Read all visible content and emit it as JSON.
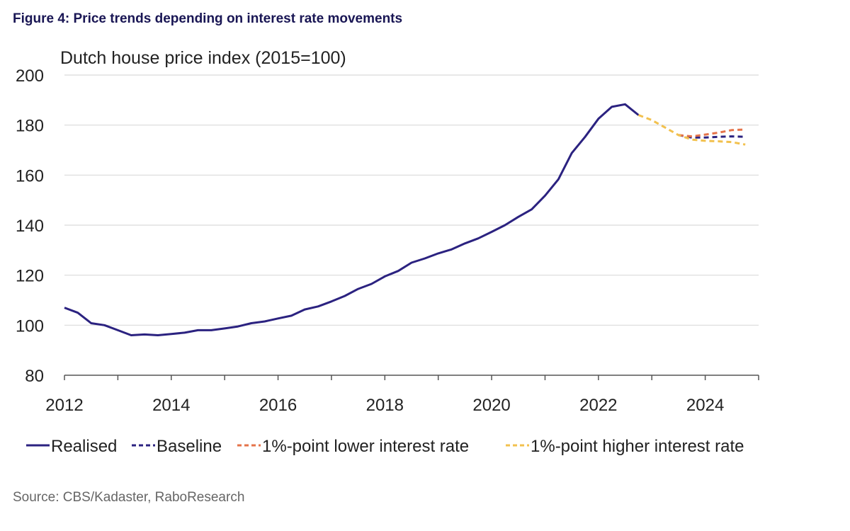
{
  "figure_title": "Figure 4: Price trends depending on interest rate movements",
  "source": "Source: CBS/Kadaster, RaboResearch",
  "colors": {
    "realised": "#2b2280",
    "baseline": "#2b2280",
    "lower": "#e5734a",
    "higher": "#f2c14e",
    "grid": "#d9d9d9",
    "axis": "#555555"
  },
  "chart_data": {
    "type": "line",
    "title": "Dutch house price index (2015=100)",
    "xlabel": "",
    "ylabel": "Dutch house price index (2015=100)",
    "xlim": [
      2012,
      2025
    ],
    "ylim": [
      80,
      200
    ],
    "grid": true,
    "legend_position": "bottom",
    "x_ticks": [
      2012,
      2014,
      2016,
      2018,
      2020,
      2022,
      2024
    ],
    "y_ticks": [
      80,
      100,
      120,
      140,
      160,
      180,
      200
    ],
    "series": [
      {
        "name": "Realised",
        "style": "solid",
        "color_key": "realised",
        "points": [
          [
            2012.0,
            107.0
          ],
          [
            2012.25,
            105.0
          ],
          [
            2012.5,
            100.8
          ],
          [
            2012.75,
            100.0
          ],
          [
            2013.0,
            98.0
          ],
          [
            2013.25,
            96.0
          ],
          [
            2013.5,
            96.3
          ],
          [
            2013.75,
            96.0
          ],
          [
            2014.0,
            96.5
          ],
          [
            2014.25,
            97.0
          ],
          [
            2014.5,
            98.0
          ],
          [
            2014.75,
            98.0
          ],
          [
            2015.0,
            98.7
          ],
          [
            2015.25,
            99.5
          ],
          [
            2015.5,
            100.8
          ],
          [
            2015.75,
            101.5
          ],
          [
            2016.0,
            102.7
          ],
          [
            2016.25,
            103.8
          ],
          [
            2016.5,
            106.3
          ],
          [
            2016.75,
            107.5
          ],
          [
            2017.0,
            109.5
          ],
          [
            2017.25,
            111.7
          ],
          [
            2017.5,
            114.5
          ],
          [
            2017.75,
            116.5
          ],
          [
            2018.0,
            119.5
          ],
          [
            2018.25,
            121.7
          ],
          [
            2018.5,
            125.0
          ],
          [
            2018.75,
            126.7
          ],
          [
            2019.0,
            128.7
          ],
          [
            2019.25,
            130.3
          ],
          [
            2019.5,
            132.7
          ],
          [
            2019.75,
            134.7
          ],
          [
            2020.0,
            137.3
          ],
          [
            2020.25,
            140.0
          ],
          [
            2020.5,
            143.3
          ],
          [
            2020.75,
            146.3
          ],
          [
            2021.0,
            151.8
          ],
          [
            2021.25,
            158.3
          ],
          [
            2021.5,
            168.8
          ],
          [
            2021.75,
            175.3
          ],
          [
            2022.0,
            182.5
          ],
          [
            2022.25,
            187.3
          ],
          [
            2022.5,
            188.3
          ],
          [
            2022.75,
            184.0
          ]
        ]
      },
      {
        "name": "Baseline",
        "style": "dashed",
        "color_key": "baseline",
        "points": [
          [
            2023.5,
            176.0
          ],
          [
            2023.75,
            175.0
          ],
          [
            2024.0,
            175.0
          ],
          [
            2024.25,
            175.3
          ],
          [
            2024.5,
            175.5
          ],
          [
            2024.75,
            175.3
          ]
        ]
      },
      {
        "name": "1%-point lower interest rate",
        "style": "dashed",
        "color_key": "lower",
        "points": [
          [
            2023.5,
            176.0
          ],
          [
            2023.75,
            175.5
          ],
          [
            2024.0,
            176.2
          ],
          [
            2024.25,
            177.0
          ],
          [
            2024.5,
            178.0
          ],
          [
            2024.75,
            178.2
          ]
        ]
      },
      {
        "name": "1%-point higher interest rate",
        "style": "dashed",
        "color_key": "higher",
        "points": [
          [
            2022.75,
            184.0
          ],
          [
            2023.0,
            182.0
          ],
          [
            2023.25,
            179.0
          ],
          [
            2023.5,
            176.0
          ],
          [
            2023.75,
            174.2
          ],
          [
            2024.0,
            173.7
          ],
          [
            2024.25,
            173.5
          ],
          [
            2024.5,
            173.2
          ],
          [
            2024.75,
            172.2
          ]
        ]
      }
    ]
  }
}
